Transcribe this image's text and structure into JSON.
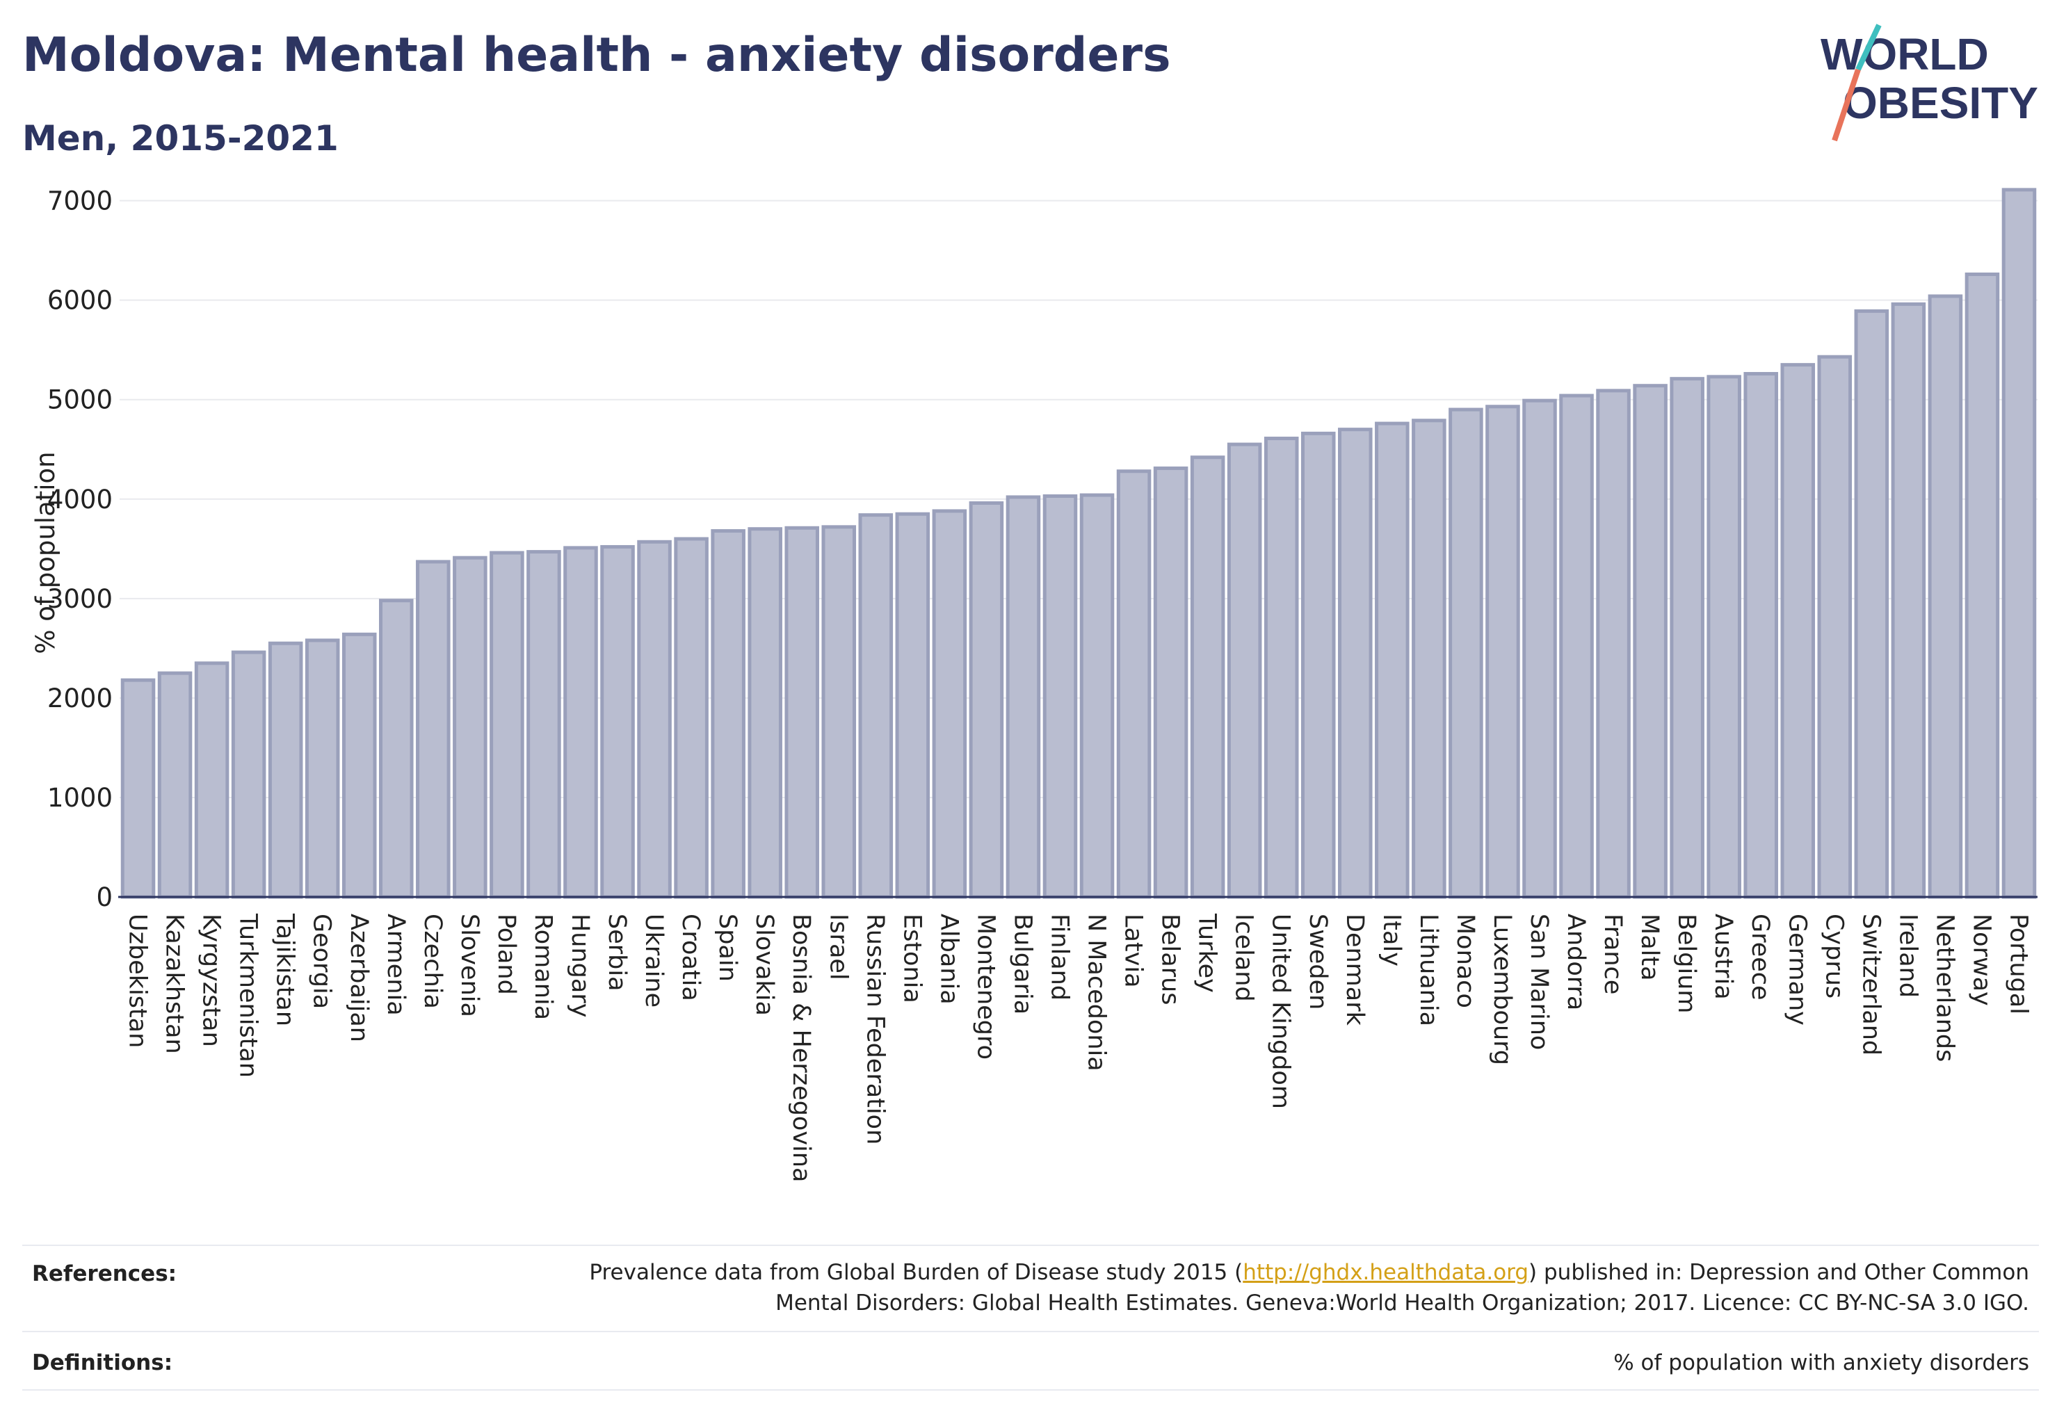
{
  "header": {
    "title": "Moldova: Mental health - anxiety disorders",
    "subtitle": "Men, 2015-2021"
  },
  "logo": {
    "line1": "WORLD",
    "line2": "OBESITY"
  },
  "colors": {
    "bar_fill": "#b9bdd0",
    "bar_stroke": "#9aa0bb",
    "title": "#2d3561",
    "logo_teal": "#3fbfbf",
    "logo_coral": "#e8735a"
  },
  "chart_data": {
    "type": "bar",
    "title": "Moldova: Mental health - anxiety disorders",
    "subtitle": "Men, 2015-2021",
    "xlabel": "",
    "ylabel": "% of population",
    "ylim": [
      0,
      7200
    ],
    "yticks": [
      0,
      1000,
      2000,
      3000,
      4000,
      5000,
      6000,
      7000
    ],
    "grid": true,
    "categories": [
      "Uzbekistan",
      "Kazakhstan",
      "Kyrgyzstan",
      "Turkmenistan",
      "Tajikistan",
      "Georgia",
      "Azerbaijan",
      "Armenia",
      "Czechia",
      "Slovenia",
      "Poland",
      "Romania",
      "Hungary",
      "Serbia",
      "Ukraine",
      "Croatia",
      "Spain",
      "Slovakia",
      "Bosnia & Herzegovina",
      "Israel",
      "Russian Federation",
      "Estonia",
      "Albania",
      "Montenegro",
      "Bulgaria",
      "Finland",
      "N Macedonia",
      "Latvia",
      "Belarus",
      "Turkey",
      "Iceland",
      "United Kingdom",
      "Sweden",
      "Denmark",
      "Italy",
      "Lithuania",
      "Monaco",
      "Luxembourg",
      "San Marino",
      "Andorra",
      "France",
      "Malta",
      "Belgium",
      "Austria",
      "Greece",
      "Germany",
      "Cyprus",
      "Switzerland",
      "Ireland",
      "Netherlands",
      "Norway",
      "Portugal"
    ],
    "values": [
      2180,
      2250,
      2350,
      2460,
      2550,
      2580,
      2640,
      2980,
      3370,
      3410,
      3460,
      3470,
      3510,
      3520,
      3570,
      3600,
      3680,
      3700,
      3710,
      3720,
      3840,
      3850,
      3880,
      3960,
      4020,
      4030,
      4040,
      4280,
      4310,
      4420,
      4550,
      4610,
      4660,
      4700,
      4760,
      4790,
      4900,
      4930,
      4990,
      5040,
      5090,
      5140,
      5210,
      5230,
      5260,
      5350,
      5430,
      5890,
      5960,
      6040,
      6260,
      7110
    ]
  },
  "footer": {
    "references_label": "References:",
    "references_text_1": "Prevalence data from Global Burden of Disease study 2015 (",
    "references_link": "http://ghdx.healthdata.org",
    "references_text_2": ") published in: Depression and Other Common",
    "references_text_3": "Mental Disorders: Global Health Estimates. Geneva:World Health Organization; 2017. Licence: CC BY-NC-SA 3.0 IGO.",
    "definitions_label": "Definitions:",
    "definitions_text": "% of population with anxiety disorders"
  }
}
